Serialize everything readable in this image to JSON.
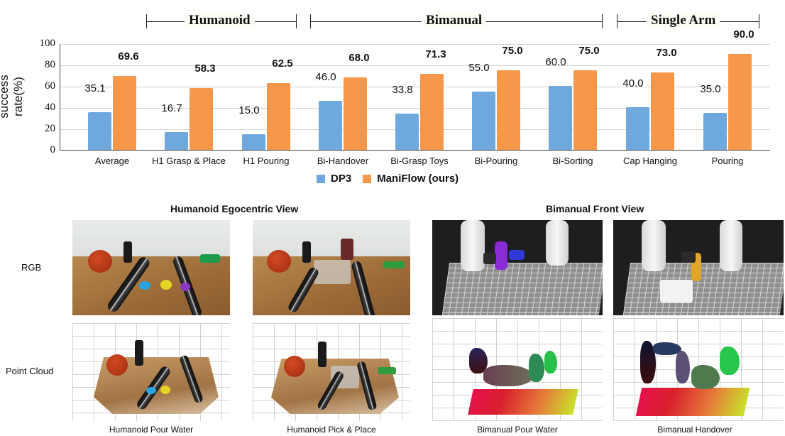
{
  "groups": [
    {
      "label": "Humanoid"
    },
    {
      "label": "Bimanual"
    },
    {
      "label": "Single Arm"
    }
  ],
  "chart_data": {
    "type": "bar",
    "title": "",
    "xlabel": "",
    "ylabel": "success rate(%)",
    "ylim": [
      0,
      100
    ],
    "yticks": [
      "0",
      "20",
      "40",
      "60",
      "80",
      "100"
    ],
    "grid": true,
    "legend_position": "bottom-center",
    "categories": [
      "Average",
      "H1 Grasp & Place",
      "H1 Pouring",
      "Bi-Handover",
      "Bi-Grasp Toys",
      "Bi-Pouring",
      "Bi-Sorting",
      "Cap Hanging",
      "Pouring"
    ],
    "category_groups": {
      "Humanoid": [
        "H1 Grasp & Place",
        "H1 Pouring"
      ],
      "Bimanual": [
        "Bi-Handover",
        "Bi-Grasp Toys",
        "Bi-Pouring",
        "Bi-Sorting"
      ],
      "Single Arm": [
        "Cap Hanging",
        "Pouring"
      ]
    },
    "series": [
      {
        "name": "DP3",
        "color": "#6fa8dc",
        "values": [
          35.1,
          16.7,
          15.0,
          46.0,
          33.8,
          55.0,
          60.0,
          40.0,
          35.0
        ],
        "labels": [
          "35.1",
          "16.7",
          "15.0",
          "46.0",
          "33.8",
          "55.0",
          "60.0",
          "40.0",
          "35.0"
        ]
      },
      {
        "name": "ManiFlow (ours)",
        "color": "#f6974a",
        "values": [
          69.6,
          58.3,
          62.5,
          68.0,
          71.3,
          75.0,
          75.0,
          73.0,
          90.0
        ],
        "labels": [
          "69.6",
          "58.3",
          "62.5",
          "68.0",
          "71.3",
          "75.0",
          "75.0",
          "73.0",
          "90.0"
        ]
      }
    ]
  },
  "bottom_panel": {
    "sections": [
      {
        "title": "Humanoid Egocentric View"
      },
      {
        "title": "Bimanual Front View"
      }
    ],
    "row_labels": {
      "rgb": "RGB",
      "point_cloud": "Point Cloud"
    },
    "captions": [
      "Humanoid Pour Water",
      "Humanoid Pick & Place",
      "Bimanual Pour Water",
      "Bimanual Handover"
    ]
  }
}
